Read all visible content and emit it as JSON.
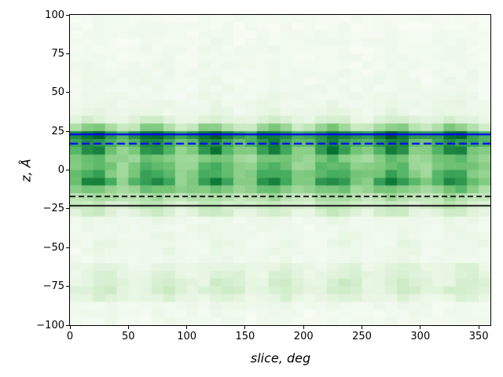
{
  "chart_data": {
    "type": "heatmap",
    "title": "",
    "xlabel": "slice, deg",
    "ylabel": "z, Å",
    "xlim": [
      0,
      360
    ],
    "ylim": [
      -100,
      100
    ],
    "grid_on": false,
    "legend": "none",
    "x_tick_values": [
      0,
      50,
      100,
      150,
      200,
      250,
      300,
      350
    ],
    "x_tick_labels": [
      "0",
      "50",
      "100",
      "150",
      "200",
      "250",
      "300",
      "350"
    ],
    "y_tick_values": [
      100,
      75,
      50,
      25,
      0,
      -25,
      -50,
      -75,
      -100
    ],
    "y_tick_labels": [
      "100",
      "75",
      "50",
      "25",
      "0",
      "−25",
      "−50",
      "−75",
      "−100"
    ],
    "colormap": "Greens",
    "colormap_stops": [
      "#f7fcf5",
      "#e5f5e0",
      "#c7e9c0",
      "#a1d99b",
      "#74c476",
      "#41ab5d",
      "#238b45",
      "#006d2c",
      "#00441b"
    ],
    "grid": {
      "cols": 36,
      "rows": 40,
      "deg_per_col": 10,
      "angstrom_per_row": 5
    },
    "x_period_deg": 51.43,
    "intensity_rows": [
      [
        100,
        0.02,
        0.01,
        20
      ],
      [
        95,
        0.02,
        0.012,
        20
      ],
      [
        90,
        0.025,
        0.015,
        20
      ],
      [
        85,
        0.025,
        0.015,
        20
      ],
      [
        80,
        0.028,
        0.018,
        20
      ],
      [
        75,
        0.03,
        0.02,
        20
      ],
      [
        70,
        0.03,
        0.02,
        20
      ],
      [
        65,
        0.032,
        0.022,
        20
      ],
      [
        60,
        0.035,
        0.025,
        20
      ],
      [
        55,
        0.038,
        0.028,
        20
      ],
      [
        50,
        0.04,
        0.03,
        20
      ],
      [
        45,
        0.05,
        0.04,
        20
      ],
      [
        40,
        0.06,
        0.05,
        20
      ],
      [
        35,
        0.1,
        0.1,
        20
      ],
      [
        30,
        0.22,
        0.25,
        20
      ],
      [
        25,
        0.62,
        0.25,
        20
      ],
      [
        20,
        0.55,
        0.2,
        20
      ],
      [
        15,
        0.42,
        0.38,
        20
      ],
      [
        10,
        0.38,
        0.15,
        20
      ],
      [
        5,
        0.4,
        0.18,
        20
      ],
      [
        0,
        0.42,
        0.22,
        20
      ],
      [
        -5,
        0.44,
        0.34,
        20
      ],
      [
        -10,
        0.38,
        0.15,
        20
      ],
      [
        -15,
        0.26,
        0.1,
        20
      ],
      [
        -20,
        0.18,
        0.1,
        20
      ],
      [
        -25,
        0.1,
        0.14,
        20
      ],
      [
        -30,
        0.05,
        0.04,
        20
      ],
      [
        -35,
        0.04,
        0.03,
        20
      ],
      [
        -40,
        0.045,
        0.04,
        30
      ],
      [
        -45,
        0.05,
        0.05,
        30
      ],
      [
        -50,
        0.05,
        0.04,
        30
      ],
      [
        -55,
        0.04,
        0.03,
        30
      ],
      [
        -60,
        0.07,
        0.08,
        30
      ],
      [
        -65,
        0.09,
        0.1,
        30
      ],
      [
        -70,
        0.11,
        0.1,
        30
      ],
      [
        -75,
        0.13,
        0.09,
        30
      ],
      [
        -80,
        0.09,
        0.07,
        30
      ],
      [
        -85,
        0.04,
        0.03,
        30
      ],
      [
        -90,
        0.03,
        0.02,
        30
      ],
      [
        -95,
        0.03,
        0.02,
        30
      ]
    ],
    "overlay_lines": [
      {
        "name": "upper-boundary-solid-blue",
        "z": 23,
        "color": "#0000ff",
        "style": "solid",
        "width": 2.2,
        "dash": []
      },
      {
        "name": "upper-boundary-dashed-blue",
        "z": 17,
        "color": "#0000ff",
        "style": "dashed",
        "width": 2.2,
        "dash": [
          10,
          5
        ]
      },
      {
        "name": "lower-boundary-dashed-black",
        "z": -17,
        "color": "#000000",
        "style": "dashed",
        "width": 1.7,
        "dash": [
          7,
          4
        ]
      },
      {
        "name": "lower-boundary-solid-black",
        "z": -23,
        "color": "#000000",
        "style": "solid",
        "width": 1.7,
        "dash": []
      }
    ]
  },
  "figure": {
    "background_color": "#ffffff",
    "plot_background_color": "#f7fcf5",
    "spine_color": "#000000"
  }
}
